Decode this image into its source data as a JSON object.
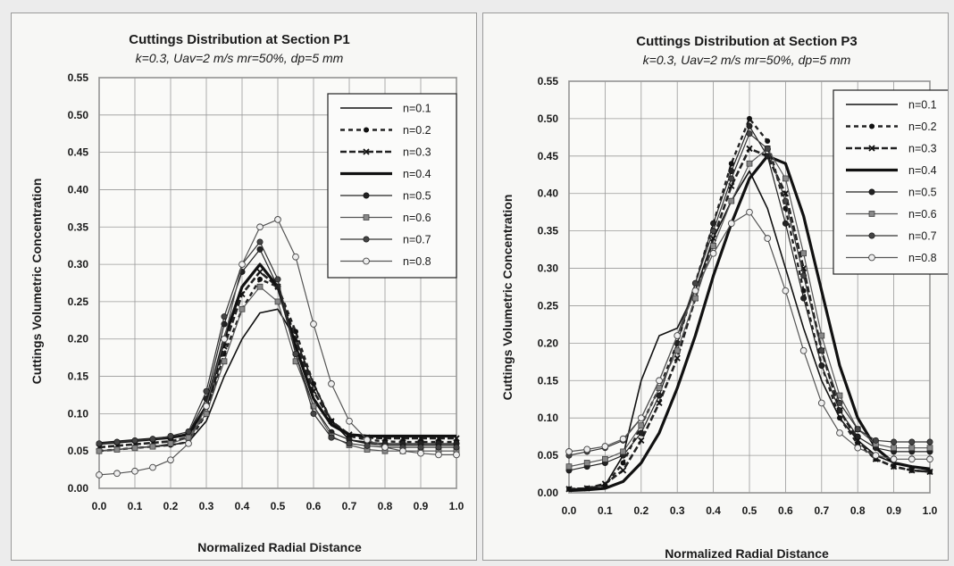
{
  "chart_data": [
    {
      "type": "line",
      "title": "Cuttings Distribution at Section P1",
      "subtitle": "k=0.3, Uav=2 m/s  mr=50%, dp=5 mm",
      "xlabel": "Normalized Radial Distance",
      "ylabel": "Cuttings Volumetric Concentration",
      "xlim": [
        0,
        1
      ],
      "ylim": [
        0,
        0.55
      ],
      "xticks": [
        "0.0",
        "0.1",
        "0.2",
        "0.3",
        "0.4",
        "0.5",
        "0.6",
        "0.7",
        "0.8",
        "0.9",
        "1.0"
      ],
      "yticks": [
        "0.00",
        "0.05",
        "0.10",
        "0.15",
        "0.20",
        "0.25",
        "0.30",
        "0.35",
        "0.40",
        "0.45",
        "0.50",
        "0.55"
      ],
      "grid": true,
      "legend_position": "top-right",
      "x": [
        0.0,
        0.05,
        0.1,
        0.15,
        0.2,
        0.25,
        0.3,
        0.35,
        0.4,
        0.45,
        0.5,
        0.55,
        0.6,
        0.65,
        0.7,
        0.75,
        0.8,
        0.85,
        0.9,
        0.95,
        1.0
      ],
      "series": [
        {
          "name": "n=0.1",
          "values": [
            0.05,
            0.052,
            0.054,
            0.056,
            0.058,
            0.062,
            0.09,
            0.15,
            0.2,
            0.235,
            0.24,
            0.2,
            0.14,
            0.09,
            0.065,
            0.06,
            0.058,
            0.058,
            0.058,
            0.058,
            0.058
          ]
        },
        {
          "name": "n=0.2",
          "values": [
            0.05,
            0.052,
            0.054,
            0.056,
            0.058,
            0.062,
            0.1,
            0.18,
            0.24,
            0.28,
            0.27,
            0.21,
            0.14,
            0.09,
            0.07,
            0.065,
            0.063,
            0.062,
            0.062,
            0.062,
            0.062
          ]
        },
        {
          "name": "n=0.3",
          "values": [
            0.055,
            0.057,
            0.059,
            0.061,
            0.063,
            0.068,
            0.1,
            0.19,
            0.26,
            0.29,
            0.27,
            0.2,
            0.13,
            0.09,
            0.072,
            0.068,
            0.067,
            0.067,
            0.067,
            0.067,
            0.067
          ]
        },
        {
          "name": "n=0.4",
          "values": [
            0.06,
            0.062,
            0.064,
            0.066,
            0.068,
            0.072,
            0.11,
            0.2,
            0.27,
            0.3,
            0.27,
            0.19,
            0.12,
            0.085,
            0.072,
            0.07,
            0.07,
            0.07,
            0.07,
            0.07,
            0.07
          ]
        },
        {
          "name": "n=0.5",
          "values": [
            0.06,
            0.062,
            0.064,
            0.066,
            0.068,
            0.074,
            0.12,
            0.22,
            0.29,
            0.32,
            0.27,
            0.18,
            0.11,
            0.075,
            0.065,
            0.062,
            0.06,
            0.06,
            0.06,
            0.06,
            0.06
          ]
        },
        {
          "name": "n=0.6",
          "values": [
            0.05,
            0.052,
            0.054,
            0.056,
            0.06,
            0.068,
            0.1,
            0.17,
            0.24,
            0.27,
            0.25,
            0.17,
            0.11,
            0.07,
            0.058,
            0.052,
            0.05,
            0.05,
            0.05,
            0.05,
            0.05
          ]
        },
        {
          "name": "n=0.7",
          "values": [
            0.06,
            0.062,
            0.064,
            0.066,
            0.07,
            0.076,
            0.13,
            0.23,
            0.3,
            0.33,
            0.28,
            0.18,
            0.1,
            0.068,
            0.06,
            0.057,
            0.055,
            0.055,
            0.055,
            0.055,
            0.055
          ]
        },
        {
          "name": "n=0.8",
          "values": [
            0.018,
            0.02,
            0.023,
            0.028,
            0.038,
            0.06,
            0.11,
            0.2,
            0.3,
            0.35,
            0.36,
            0.31,
            0.22,
            0.14,
            0.09,
            0.065,
            0.055,
            0.05,
            0.047,
            0.045,
            0.045
          ]
        }
      ]
    },
    {
      "type": "line",
      "title": "Cuttings Distribution at Section P3",
      "subtitle": "k=0.3, Uav=2 m/s  mr=50%, dp=5 mm",
      "xlabel": "Normalized Radial Distance",
      "ylabel": "Cuttings Volumetric Concentration",
      "xlim": [
        0,
        1
      ],
      "ylim": [
        0,
        0.55
      ],
      "xticks": [
        "0.0",
        "0.1",
        "0.2",
        "0.3",
        "0.4",
        "0.5",
        "0.6",
        "0.7",
        "0.8",
        "0.9",
        "1.0"
      ],
      "yticks": [
        "0.00",
        "0.05",
        "0.10",
        "0.15",
        "0.20",
        "0.25",
        "0.30",
        "0.35",
        "0.40",
        "0.45",
        "0.50",
        "0.55"
      ],
      "grid": true,
      "legend_position": "top-right",
      "x": [
        0.0,
        0.05,
        0.1,
        0.15,
        0.2,
        0.25,
        0.3,
        0.35,
        0.4,
        0.45,
        0.5,
        0.55,
        0.6,
        0.65,
        0.7,
        0.75,
        0.8,
        0.85,
        0.9,
        0.95,
        1.0
      ],
      "series": [
        {
          "name": "n=0.1",
          "values": [
            0.005,
            0.006,
            0.01,
            0.05,
            0.15,
            0.21,
            0.22,
            0.27,
            0.34,
            0.39,
            0.43,
            0.38,
            0.3,
            0.22,
            0.15,
            0.1,
            0.07,
            0.05,
            0.04,
            0.035,
            0.03
          ]
        },
        {
          "name": "n=0.2",
          "values": [
            0.005,
            0.006,
            0.01,
            0.04,
            0.09,
            0.14,
            0.2,
            0.28,
            0.36,
            0.44,
            0.5,
            0.47,
            0.38,
            0.27,
            0.17,
            0.1,
            0.065,
            0.045,
            0.035,
            0.03,
            0.028
          ]
        },
        {
          "name": "n=0.3",
          "values": [
            0.005,
            0.006,
            0.012,
            0.03,
            0.07,
            0.12,
            0.18,
            0.26,
            0.34,
            0.41,
            0.46,
            0.45,
            0.4,
            0.3,
            0.19,
            0.11,
            0.07,
            0.045,
            0.035,
            0.03,
            0.028
          ]
        },
        {
          "name": "n=0.4",
          "values": [
            0.003,
            0.004,
            0.006,
            0.015,
            0.04,
            0.08,
            0.14,
            0.21,
            0.29,
            0.36,
            0.42,
            0.45,
            0.44,
            0.37,
            0.27,
            0.17,
            0.1,
            0.06,
            0.04,
            0.035,
            0.032
          ]
        },
        {
          "name": "n=0.5",
          "values": [
            0.03,
            0.035,
            0.04,
            0.05,
            0.08,
            0.13,
            0.2,
            0.28,
            0.36,
            0.43,
            0.49,
            0.45,
            0.36,
            0.26,
            0.17,
            0.11,
            0.075,
            0.06,
            0.055,
            0.055,
            0.055
          ]
        },
        {
          "name": "n=0.6",
          "values": [
            0.035,
            0.04,
            0.045,
            0.055,
            0.09,
            0.14,
            0.19,
            0.26,
            0.33,
            0.39,
            0.44,
            0.46,
            0.42,
            0.32,
            0.21,
            0.13,
            0.085,
            0.065,
            0.06,
            0.06,
            0.06
          ]
        },
        {
          "name": "n=0.7",
          "values": [
            0.05,
            0.055,
            0.06,
            0.07,
            0.1,
            0.15,
            0.21,
            0.28,
            0.35,
            0.42,
            0.48,
            0.46,
            0.39,
            0.29,
            0.19,
            0.12,
            0.085,
            0.07,
            0.068,
            0.068,
            0.068
          ]
        },
        {
          "name": "n=0.8",
          "values": [
            0.055,
            0.058,
            0.062,
            0.072,
            0.1,
            0.15,
            0.21,
            0.27,
            0.32,
            0.36,
            0.375,
            0.34,
            0.27,
            0.19,
            0.12,
            0.08,
            0.06,
            0.05,
            0.045,
            0.045,
            0.045
          ]
        }
      ]
    }
  ]
}
